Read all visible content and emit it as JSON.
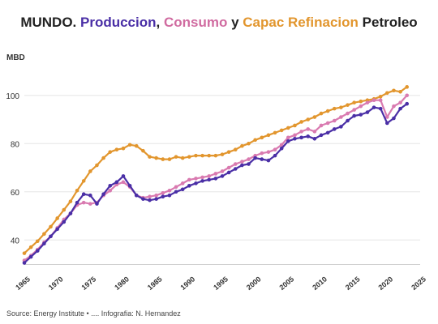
{
  "title": {
    "part1": "MUNDO. ",
    "part2": "Produccion",
    "part3": ", ",
    "part4": "Consumo",
    "part5": " y ",
    "part6": "Capac Refinacion",
    "part7": " Petroleo"
  },
  "colors": {
    "produccion": "#4a2fa6",
    "consumo": "#d97ab0",
    "capacidad": "#e2962e",
    "grid": "#e6e6e6"
  },
  "footer": {
    "source": "Source: Energy Institute • .... Infografia: N. Hernandez"
  },
  "chart_data": {
    "type": "line",
    "ylabel": "MBD",
    "xlim": [
      1965,
      2025
    ],
    "ylim": [
      30,
      110
    ],
    "yticks": [
      40,
      60,
      80,
      100
    ],
    "xticks": [
      1965,
      1970,
      1975,
      1980,
      1985,
      1990,
      1995,
      2000,
      2005,
      2010,
      2015,
      2020,
      2025
    ],
    "grid": "horizontal",
    "x": [
      1965,
      1966,
      1967,
      1968,
      1969,
      1970,
      1971,
      1972,
      1973,
      1974,
      1975,
      1976,
      1977,
      1978,
      1979,
      1980,
      1981,
      1982,
      1983,
      1984,
      1985,
      1986,
      1987,
      1988,
      1989,
      1990,
      1991,
      1992,
      1993,
      1994,
      1995,
      1996,
      1997,
      1998,
      1999,
      2000,
      2001,
      2002,
      2003,
      2004,
      2005,
      2006,
      2007,
      2008,
      2009,
      2010,
      2011,
      2012,
      2013,
      2014,
      2015,
      2016,
      2017,
      2018,
      2019,
      2020,
      2021,
      2022,
      2023
    ],
    "series": [
      {
        "key": "capacidad",
        "values": [
          34.5,
          37,
          39.5,
          42.5,
          45.5,
          49,
          52.5,
          56,
          60.5,
          64.5,
          68.5,
          71,
          74,
          76.5,
          77.5,
          78,
          79.5,
          79,
          77,
          74.5,
          74,
          73.5,
          73.5,
          74.5,
          74,
          74.5,
          75,
          75,
          75,
          75,
          75.5,
          76.5,
          77.5,
          79,
          80,
          81.5,
          82.5,
          83.5,
          84.5,
          85.5,
          86.5,
          87.5,
          89,
          90,
          91,
          92.5,
          93.5,
          94.5,
          95,
          96,
          97,
          97.5,
          98,
          98.5,
          99.5,
          101,
          102,
          101.5,
          103.5
        ]
      },
      {
        "key": "consumo",
        "values": [
          31.5,
          33.5,
          36,
          39,
          41.5,
          45,
          48.5,
          51,
          54.5,
          55.5,
          55,
          55.5,
          58.5,
          60.5,
          63,
          64,
          62,
          58.5,
          57.5,
          58,
          58.5,
          59.5,
          60.5,
          62,
          63.5,
          65,
          65.5,
          66,
          66.5,
          67.5,
          68.5,
          70,
          71.5,
          72.5,
          73.5,
          75,
          76,
          76.5,
          77.5,
          79.5,
          82.5,
          83.5,
          85,
          86,
          85,
          87.5,
          88.5,
          89.5,
          91,
          92.5,
          94,
          95.5,
          97,
          98,
          98,
          91,
          95.5,
          97,
          100
        ]
      },
      {
        "key": "produccion",
        "values": [
          30.5,
          33,
          35.5,
          38.5,
          41.5,
          44.5,
          47.5,
          51,
          55.5,
          59,
          58.5,
          55,
          59,
          62.5,
          64,
          66.5,
          62.5,
          58.5,
          57,
          56.5,
          57,
          58,
          58.5,
          60,
          61,
          62.5,
          63.5,
          64.5,
          65,
          65.5,
          66.5,
          68,
          69.5,
          71,
          71.5,
          74,
          73.5,
          73,
          75,
          78,
          81,
          82,
          82.5,
          83,
          82,
          83.5,
          84.5,
          86,
          87,
          89.5,
          91.5,
          92,
          93,
          95,
          94.5,
          88.5,
          90.5,
          94.5,
          96.5
        ]
      }
    ]
  }
}
